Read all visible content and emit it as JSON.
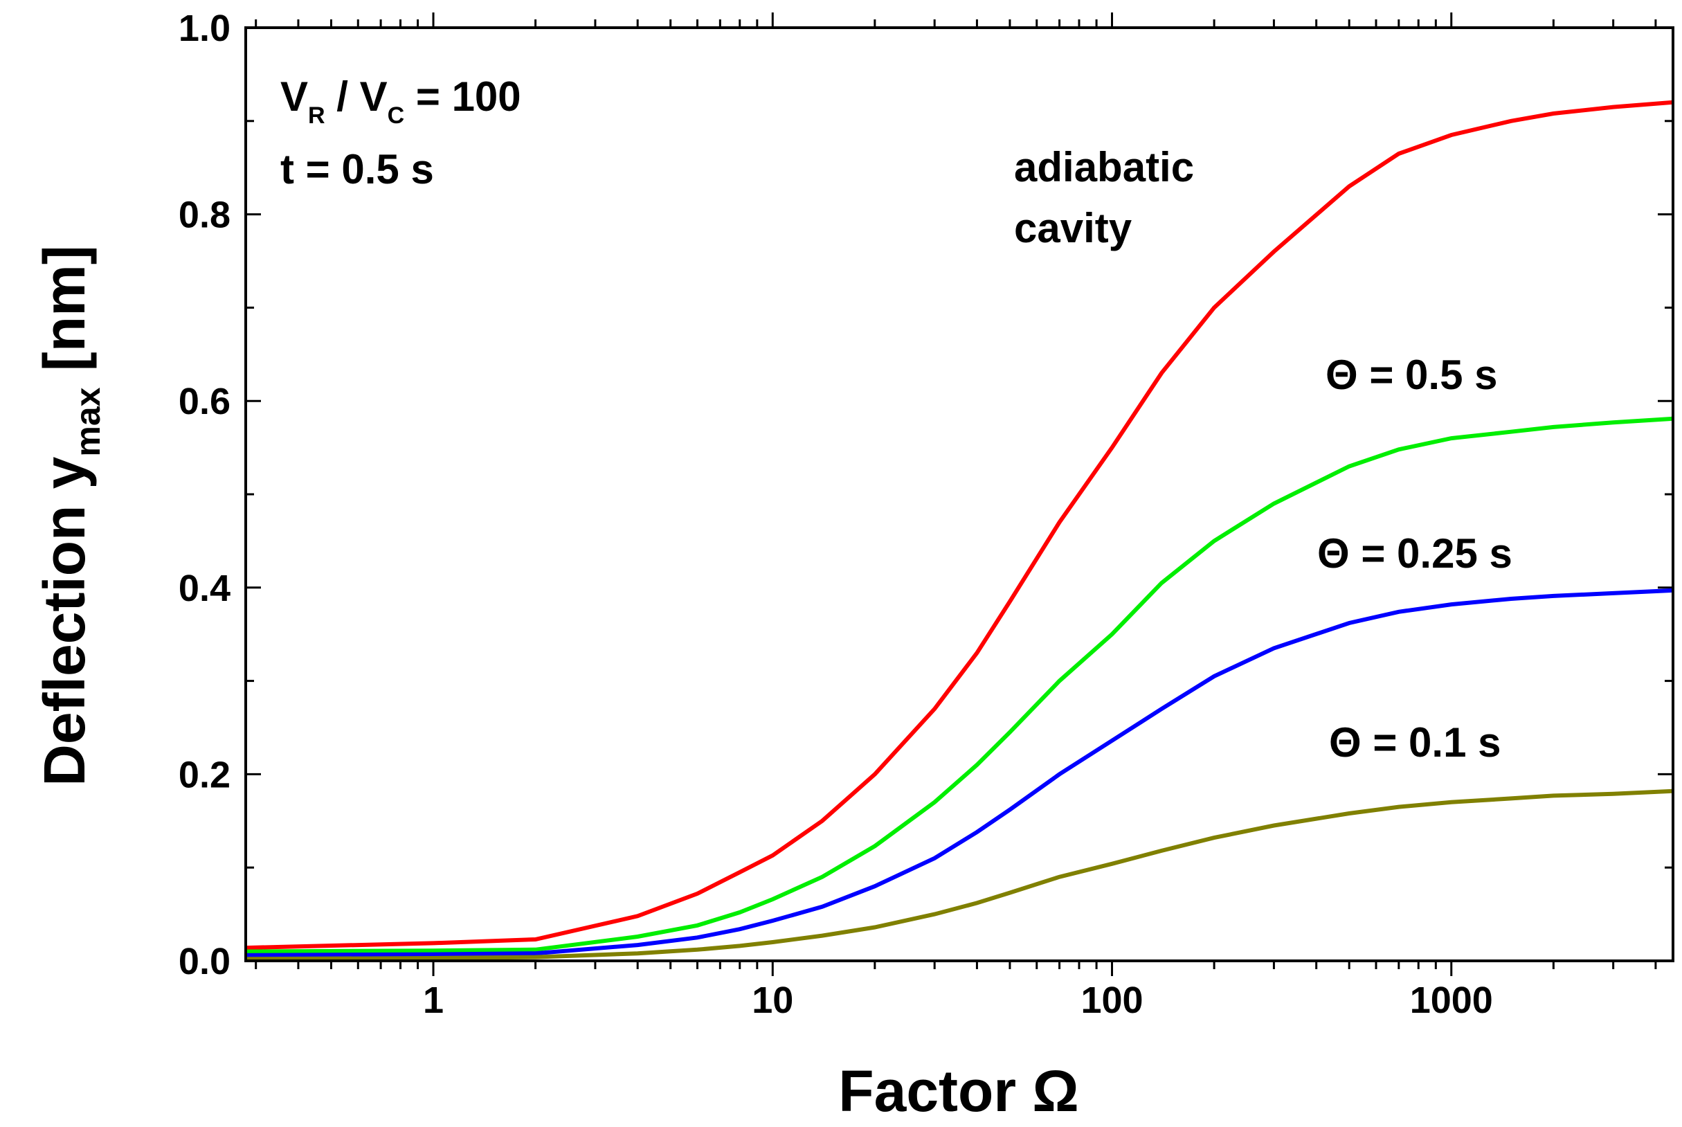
{
  "chart_data": {
    "type": "line",
    "title": "",
    "xlabel": "Factor Ω",
    "ylabel": {
      "main": "Deflection y",
      "sub": "max",
      "unit": "[nm]"
    },
    "xscale": "log",
    "xlim": [
      0.28,
      4500
    ],
    "ylim": [
      0.0,
      1.0
    ],
    "x_tick_labels": [
      "1",
      "10",
      "100",
      "1000"
    ],
    "y_tick_labels": [
      "0.0",
      "0.2",
      "0.4",
      "0.6",
      "0.8",
      "1.0"
    ],
    "annotations": {
      "params_line1": {
        "a": "V",
        "a_sub": "R",
        "b": " / V",
        "b_sub": "C",
        "c": " = 100"
      },
      "params_line2": "t = 0.5 s",
      "adiabatic_line1": "adiabatic",
      "adiabatic_line2": "cavity",
      "theta_05": "Θ = 0.5 s",
      "theta_025": "Θ = 0.25 s",
      "theta_01": "Θ = 0.1 s"
    },
    "x": [
      0.28,
      1,
      2,
      4,
      6,
      8,
      10,
      14,
      20,
      30,
      40,
      50,
      70,
      100,
      140,
      200,
      300,
      500,
      700,
      1000,
      1500,
      2000,
      3000,
      4500
    ],
    "series": [
      {
        "name": "adiabatic cavity",
        "color": "#ff0000",
        "values": [
          0.014,
          0.019,
          0.023,
          0.048,
          0.072,
          0.095,
          0.113,
          0.15,
          0.2,
          0.27,
          0.33,
          0.385,
          0.47,
          0.55,
          0.63,
          0.7,
          0.76,
          0.83,
          0.865,
          0.885,
          0.9,
          0.908,
          0.915,
          0.92
        ]
      },
      {
        "name": "Θ = 0.5 s",
        "color": "#00ee00",
        "values": [
          0.01,
          0.011,
          0.012,
          0.026,
          0.038,
          0.052,
          0.066,
          0.09,
          0.123,
          0.17,
          0.21,
          0.245,
          0.3,
          0.35,
          0.405,
          0.45,
          0.49,
          0.53,
          0.548,
          0.56,
          0.567,
          0.572,
          0.577,
          0.581
        ]
      },
      {
        "name": "Θ = 0.25 s",
        "color": "#0000ff",
        "values": [
          0.006,
          0.007,
          0.008,
          0.017,
          0.025,
          0.034,
          0.043,
          0.058,
          0.08,
          0.11,
          0.138,
          0.162,
          0.2,
          0.236,
          0.27,
          0.305,
          0.335,
          0.362,
          0.374,
          0.382,
          0.388,
          0.391,
          0.394,
          0.397
        ]
      },
      {
        "name": "Θ = 0.1 s",
        "color": "#808000",
        "values": [
          0.002,
          0.003,
          0.004,
          0.008,
          0.012,
          0.016,
          0.02,
          0.027,
          0.036,
          0.05,
          0.062,
          0.073,
          0.09,
          0.104,
          0.118,
          0.132,
          0.145,
          0.158,
          0.165,
          0.17,
          0.174,
          0.177,
          0.179,
          0.182
        ]
      }
    ]
  }
}
